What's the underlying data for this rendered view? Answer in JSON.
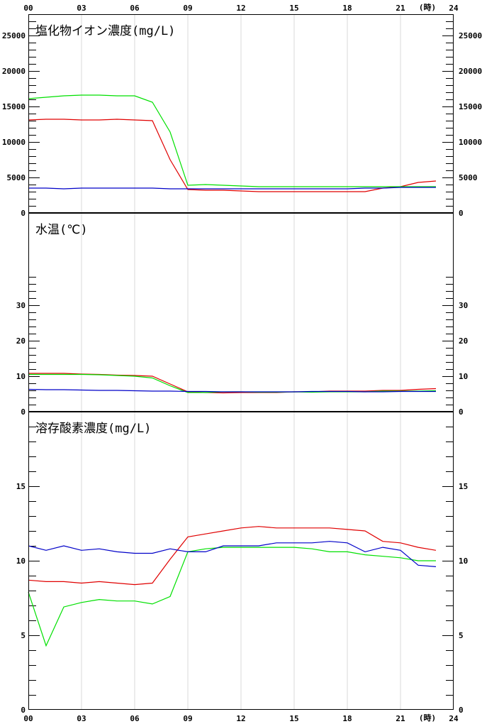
{
  "colors": {
    "red": "#e00000",
    "green": "#00e000",
    "blue": "#0000c8",
    "grid": "#d8d8d8"
  },
  "time_axis": {
    "labels": [
      "00",
      "03",
      "06",
      "09",
      "12",
      "15",
      "18",
      "21",
      "24"
    ],
    "hours": [
      0,
      3,
      6,
      9,
      12,
      15,
      18,
      21,
      24
    ],
    "unit_label": "(時)",
    "range": [
      0,
      24
    ]
  },
  "chart_data": [
    {
      "type": "line",
      "title": "塩化物イオン濃度(mg/L)",
      "ylim": [
        0,
        28000
      ],
      "yticks": [
        0,
        5000,
        10000,
        15000,
        20000,
        25000
      ],
      "ytick_labels": [
        "0",
        "5000",
        "10000",
        "15000",
        "20000",
        "25000"
      ],
      "minor_step": 1000,
      "x": [
        0,
        1,
        2,
        3,
        4,
        5,
        6,
        7,
        8,
        9,
        10,
        11,
        12,
        13,
        14,
        15,
        16,
        17,
        18,
        19,
        20,
        21,
        22,
        23
      ],
      "series": [
        {
          "color": "red",
          "values": [
            13100,
            13200,
            13200,
            13100,
            13100,
            13200,
            13100,
            13000,
            7500,
            3300,
            3200,
            3200,
            3100,
            3000,
            3000,
            3000,
            3000,
            3000,
            3000,
            3000,
            3500,
            3700,
            4300,
            4500
          ]
        },
        {
          "color": "green",
          "values": [
            16100,
            16300,
            16500,
            16600,
            16600,
            16500,
            16500,
            15600,
            11400,
            3900,
            4000,
            3900,
            3800,
            3700,
            3700,
            3700,
            3700,
            3700,
            3700,
            3700,
            3700,
            3700,
            3700,
            3700
          ]
        },
        {
          "color": "blue",
          "values": [
            3500,
            3500,
            3400,
            3500,
            3500,
            3500,
            3500,
            3500,
            3400,
            3400,
            3400,
            3400,
            3400,
            3400,
            3400,
            3400,
            3400,
            3400,
            3400,
            3500,
            3500,
            3600,
            3600,
            3600
          ]
        }
      ]
    },
    {
      "type": "line",
      "title": "水温(℃)",
      "ylim": [
        0,
        56
      ],
      "yticks": [
        0,
        10,
        20,
        30
      ],
      "ytick_labels": [
        "0",
        "10",
        "20",
        "30"
      ],
      "minor_step": 2,
      "minor_max": 38,
      "x": [
        0,
        1,
        2,
        3,
        4,
        5,
        6,
        7,
        8,
        9,
        10,
        11,
        12,
        13,
        14,
        15,
        16,
        17,
        18,
        19,
        20,
        21,
        22,
        23
      ],
      "series": [
        {
          "color": "red",
          "values": [
            10.8,
            10.8,
            10.8,
            10.6,
            10.5,
            10.3,
            10.2,
            10.0,
            7.8,
            5.6,
            5.4,
            5.3,
            5.4,
            5.4,
            5.4,
            5.6,
            5.6,
            5.8,
            5.8,
            5.8,
            6.0,
            6.0,
            6.3,
            6.5
          ]
        },
        {
          "color": "green",
          "values": [
            10.5,
            10.5,
            10.5,
            10.5,
            10.4,
            10.2,
            10.0,
            9.5,
            7.3,
            5.4,
            5.4,
            5.6,
            5.6,
            5.5,
            5.5,
            5.6,
            5.5,
            5.6,
            5.6,
            5.6,
            5.8,
            5.8,
            5.8,
            5.9
          ]
        },
        {
          "color": "blue",
          "values": [
            6.3,
            6.2,
            6.2,
            6.1,
            6.0,
            6.0,
            5.9,
            5.8,
            5.8,
            5.7,
            5.7,
            5.6,
            5.6,
            5.6,
            5.6,
            5.6,
            5.7,
            5.7,
            5.7,
            5.6,
            5.6,
            5.7,
            5.7,
            5.7
          ]
        }
      ]
    },
    {
      "type": "line",
      "title": "溶存酸素濃度(mg/L)",
      "ylim": [
        0,
        20
      ],
      "yticks": [
        0,
        5,
        10,
        15
      ],
      "ytick_labels": [
        "0",
        "5",
        "10",
        "15"
      ],
      "minor_step": 1,
      "x": [
        0,
        1,
        2,
        3,
        4,
        5,
        6,
        7,
        8,
        9,
        10,
        11,
        12,
        13,
        14,
        15,
        16,
        17,
        18,
        19,
        20,
        21,
        22,
        23
      ],
      "series": [
        {
          "color": "red",
          "values": [
            8.7,
            8.6,
            8.6,
            8.5,
            8.6,
            8.5,
            8.4,
            8.5,
            10.1,
            11.6,
            11.8,
            12.0,
            12.2,
            12.3,
            12.2,
            12.2,
            12.2,
            12.2,
            12.1,
            12.0,
            11.3,
            11.2,
            10.9,
            10.7
          ]
        },
        {
          "color": "green",
          "values": [
            7.9,
            4.3,
            6.9,
            7.2,
            7.4,
            7.3,
            7.3,
            7.1,
            7.6,
            10.6,
            10.8,
            10.9,
            10.9,
            10.9,
            10.9,
            10.9,
            10.8,
            10.6,
            10.6,
            10.4,
            10.3,
            10.2,
            10.0,
            10.0
          ]
        },
        {
          "color": "blue",
          "values": [
            11.0,
            10.7,
            11.0,
            10.7,
            10.8,
            10.6,
            10.5,
            10.5,
            10.8,
            10.6,
            10.6,
            11.0,
            11.0,
            11.0,
            11.2,
            11.2,
            11.2,
            11.3,
            11.2,
            10.6,
            10.9,
            10.7,
            9.7,
            9.6
          ]
        }
      ]
    }
  ]
}
